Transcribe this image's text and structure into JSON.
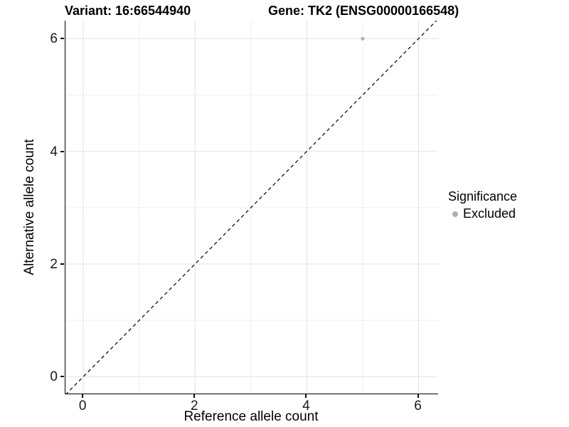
{
  "titles": {
    "variant": "Variant: 16:66544940",
    "gene": "Gene: TK2 (ENSG00000166548)"
  },
  "legend": {
    "title": "Significance",
    "items": [
      {
        "label": "Excluded",
        "color": "#b0b0b0"
      }
    ]
  },
  "chart_data": {
    "type": "scatter",
    "title_left": "Variant: 16:66544940",
    "title_right": "Gene: TK2 (ENSG00000166548)",
    "xlabel": "Reference allele count",
    "ylabel": "Alternative allele count",
    "xlim": [
      -0.32,
      6.35
    ],
    "ylim": [
      -0.3,
      6.32
    ],
    "xticks": [
      0,
      2,
      4,
      6
    ],
    "yticks": [
      0,
      2,
      4,
      6
    ],
    "minor_xticks": [
      1,
      3,
      5
    ],
    "minor_yticks": [
      1,
      3,
      5
    ],
    "grid": "major+minor",
    "legend_position": "right",
    "series": [
      {
        "name": "Excluded",
        "color": "#b0b0b0",
        "points": [
          {
            "x": 5,
            "y": 6
          }
        ],
        "point_radius": 2.6
      }
    ],
    "reference_line": {
      "type": "identity y=x",
      "style": "dashed",
      "color": "#000000"
    }
  },
  "colors": {
    "background": "#ffffff",
    "major_grid": "#e2e2e2",
    "minor_grid": "#efefef",
    "axis_line": "#000000",
    "tick_text": "#1a1a1a"
  }
}
